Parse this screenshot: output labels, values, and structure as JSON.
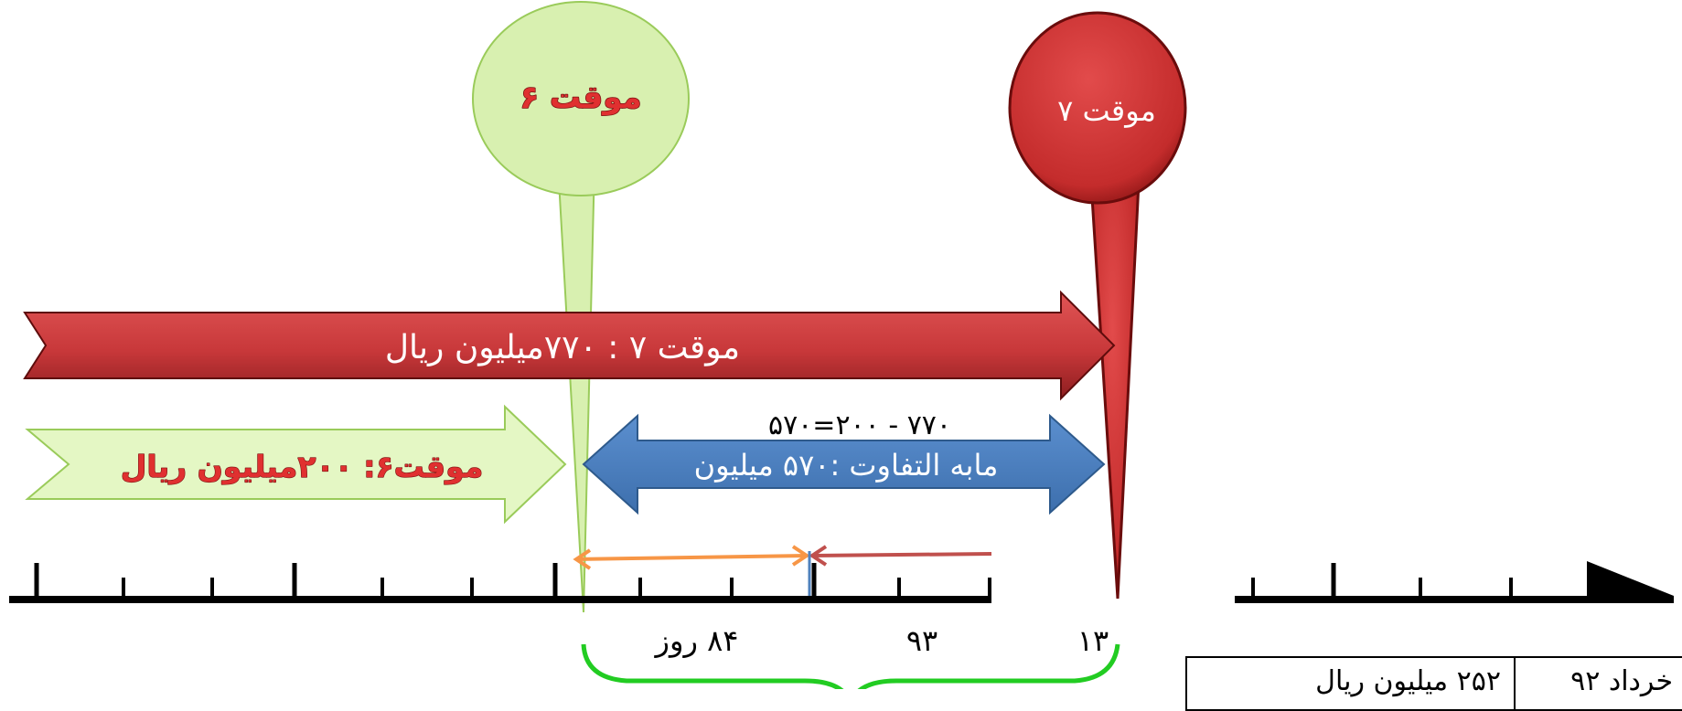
{
  "pins": {
    "pin6": {
      "label": "موقت ۶",
      "color": "#d8f0b0",
      "stroke": "#9acb5a",
      "text_color": "#e03030"
    },
    "pin7": {
      "label": "موقت ۷",
      "color": "#d23a3a",
      "stroke": "#7a1010",
      "text_color": "#ffffff"
    }
  },
  "arrows": {
    "red_arrow": {
      "label": "موقت ۷ : ۷۷۰میلیون ریال",
      "color": "#c8383a"
    },
    "green_arrow": {
      "label": "موقت۶:  ۲۰۰میلیون ریال",
      "color": "#e4f7c4",
      "text_color": "#e03030"
    },
    "blue_arrow": {
      "label": "مابه التفاوت :۵۷۰ میلیون",
      "color": "#4f81bd"
    }
  },
  "equation": "۷۷۰ - ۲۰۰=۵۷۰",
  "timeline_labels": {
    "days_84": "۸۴ روز",
    "n93": "۹۳",
    "n13": "۱۳"
  },
  "table": {
    "cell_right": "خرداد ۹۲",
    "cell_left": "۲۵۲ میلیون ریال"
  },
  "colors": {
    "orange": "#f79646",
    "brown_red": "#c0504d",
    "brace_green": "#22cc22",
    "marker_blue": "#4f81bd"
  }
}
